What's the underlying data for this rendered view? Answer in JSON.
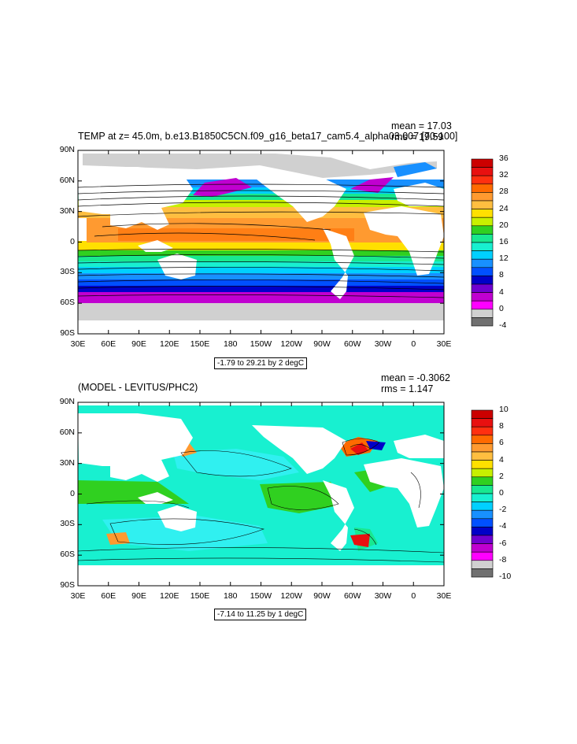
{
  "panels": [
    {
      "title": "TEMP at z=  45.0m, b.e13.B1850C5CN.f09_g16_beta17_cam5.4_alpha03.007 [70-100]",
      "mean": "mean = 17.03",
      "rms": "rms = 19.59",
      "range_note": "-1.79 to 29.21 by 2 degC",
      "colorbar_labels": [
        "36",
        "32",
        "28",
        "24",
        "20",
        "16",
        "12",
        "8",
        "4",
        "0",
        "-4"
      ],
      "colorbar_colors": [
        "#cc0000",
        "#e81010",
        "#ff3010",
        "#ff6a00",
        "#ff9a30",
        "#ffbe40",
        "#ffe000",
        "#c8f000",
        "#30d020",
        "#18e890",
        "#18f0d0",
        "#00d0ff",
        "#1890ff",
        "#0050ff",
        "#0000c8",
        "#7000d0",
        "#c000d0",
        "#ff00ff",
        "#d0d0d0",
        "#707070"
      ]
    },
    {
      "title": "(MODEL - LEVITUS/PHC2)",
      "mean": "mean = -0.3062",
      "rms": "rms = 1.147",
      "range_note": "-7.14 to 11.25 by 1 degC",
      "colorbar_labels": [
        "10",
        "8",
        "6",
        "4",
        "2",
        "0",
        "-2",
        "-4",
        "-6",
        "-8",
        "-10"
      ],
      "colorbar_colors": [
        "#cc0000",
        "#e81010",
        "#ff3010",
        "#ff6a00",
        "#ff9a30",
        "#ffbe40",
        "#ffe000",
        "#c8f000",
        "#30d020",
        "#18e890",
        "#18f0d0",
        "#00d0ff",
        "#1890ff",
        "#0050ff",
        "#0000c8",
        "#7000d0",
        "#c000d0",
        "#ff00ff",
        "#d0d0d0",
        "#707070"
      ]
    }
  ],
  "lat_labels": [
    "90N",
    "60N",
    "30N",
    "0",
    "30S",
    "60S",
    "90S"
  ],
  "lon_labels": [
    "30E",
    "60E",
    "90E",
    "120E",
    "150E",
    "180",
    "150W",
    "120W",
    "90W",
    "60W",
    "30W",
    "0",
    "30E"
  ],
  "colors": {
    "land_gray": "#d0d0d0",
    "ocean_diff": "#18f0d0",
    "ocean_diff_light": "#30f0f0"
  }
}
